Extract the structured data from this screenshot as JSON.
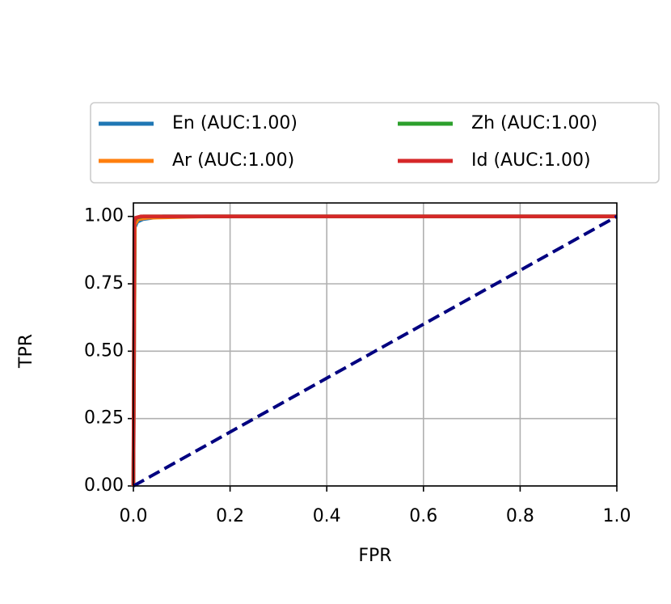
{
  "chart_data": {
    "type": "line",
    "xlabel": "FPR",
    "ylabel": "TPR",
    "xlim": [
      0,
      1
    ],
    "ylim": [
      0,
      1.05
    ],
    "xticks": [
      {
        "value": 0,
        "label": "0.0"
      },
      0.2,
      0.4,
      0.6,
      0.8,
      {
        "value": 1,
        "label": "1.0"
      }
    ],
    "yticks": [
      {
        "value": 0,
        "label": "0.00"
      },
      0.25,
      {
        "value": 0.5,
        "label": "0.50"
      },
      0.75,
      {
        "value": 1,
        "label": "1.00"
      }
    ],
    "grid": true,
    "legend_position": "top",
    "series": [
      {
        "name": "En (AUC:1.00)",
        "color": "#1f77b4",
        "x": [
          0,
          0.003,
          0.008,
          0.02,
          0.06,
          1
        ],
        "values": [
          0,
          0.96,
          0.98,
          0.99,
          1,
          1
        ]
      },
      {
        "name": "Ar (AUC:1.00)",
        "color": "#ff7f0e",
        "x": [
          0,
          0.003,
          0.01,
          0.03,
          0.15,
          1
        ],
        "values": [
          0,
          0.97,
          0.99,
          0.995,
          1,
          1
        ]
      },
      {
        "name": "Zh (AUC:1.00)",
        "color": "#2ca02c",
        "x": [
          0,
          0.002,
          0.006,
          0.02,
          1
        ],
        "values": [
          0,
          0.98,
          0.995,
          1,
          1
        ]
      },
      {
        "name": "Id (AUC:1.00)",
        "color": "#d62728",
        "x": [
          0,
          0.002,
          0.005,
          0.015,
          1
        ],
        "values": [
          0,
          0.985,
          0.995,
          1,
          1
        ]
      }
    ],
    "reference_line": {
      "color": "#000080",
      "dashed": true,
      "x": [
        0,
        1
      ],
      "values": [
        0,
        1
      ]
    }
  }
}
